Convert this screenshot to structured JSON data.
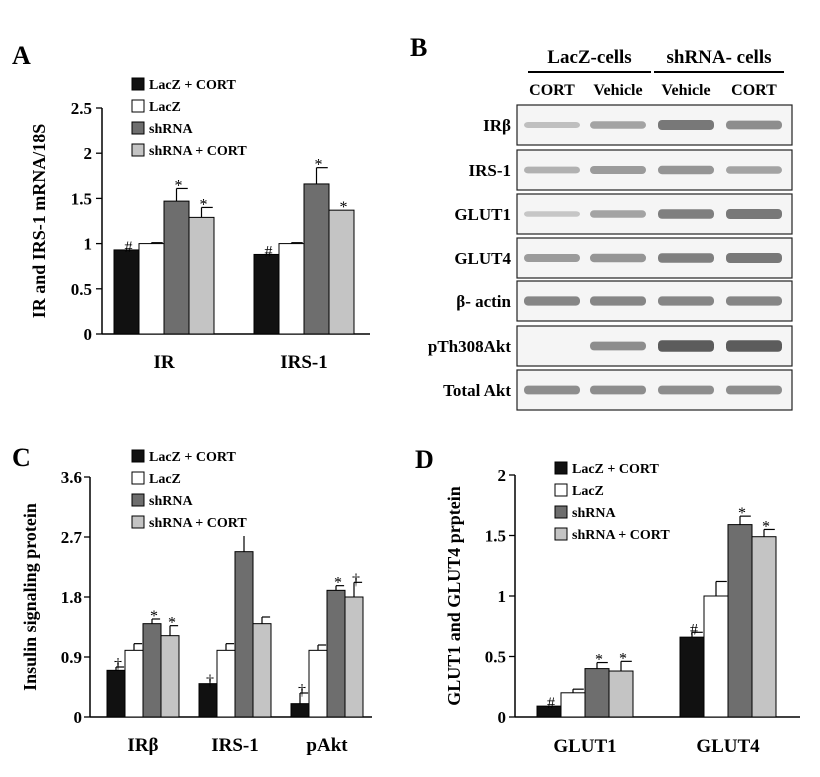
{
  "panel_labels": {
    "a": "A",
    "b": "B",
    "c": "C",
    "d": "D"
  },
  "chart_data": [
    {
      "id": "A",
      "type": "bar",
      "ylabel": "IR and IRS-1 mRNA/18S",
      "ylim": [
        0,
        2.5
      ],
      "yticks": [
        "0",
        "0.5",
        "1",
        "1.5",
        "2",
        "2.5"
      ],
      "categories": [
        "IR",
        "IRS-1"
      ],
      "series": [
        {
          "name": "LacZ + CORT",
          "color": "#111111",
          "values": [
            0.93,
            0.88
          ],
          "errors": [
            0.0,
            0.0
          ],
          "marks": [
            "#",
            "#"
          ]
        },
        {
          "name": "LacZ",
          "color": "#ffffff",
          "values": [
            1.0,
            1.0
          ],
          "errors": [
            0.01,
            0.01
          ],
          "marks": [
            "",
            ""
          ]
        },
        {
          "name": "shRNA",
          "color": "#6e6e6e",
          "values": [
            1.47,
            1.66
          ],
          "errors": [
            0.14,
            0.18
          ],
          "marks": [
            "*",
            "*"
          ]
        },
        {
          "name": "shRNA + CORT",
          "color": "#c4c4c4",
          "values": [
            1.29,
            1.37
          ],
          "errors": [
            0.11,
            0.0
          ],
          "marks": [
            "*",
            "*"
          ]
        }
      ]
    },
    {
      "id": "C",
      "type": "bar",
      "ylabel": "Insulin signaling protein",
      "ylim": [
        0,
        3.6
      ],
      "yticks": [
        "0",
        "0.9",
        "1.8",
        "2.7",
        "3.6"
      ],
      "categories": [
        "IRβ",
        "IRS-1",
        "pAkt"
      ],
      "series": [
        {
          "name": "LacZ + CORT",
          "color": "#111111",
          "values": [
            0.7,
            0.5,
            0.2
          ],
          "errors": [
            0.05,
            0.0,
            0.16
          ],
          "marks": [
            "†",
            "†",
            "†"
          ]
        },
        {
          "name": "LacZ",
          "color": "#ffffff",
          "values": [
            1.0,
            1.0,
            1.0
          ],
          "errors": [
            0.1,
            0.1,
            0.08
          ],
          "marks": [
            "",
            "",
            ""
          ]
        },
        {
          "name": "shRNA",
          "color": "#6e6e6e",
          "values": [
            1.4,
            2.48,
            1.9
          ],
          "errors": [
            0.07,
            0.35,
            0.07
          ],
          "marks": [
            "*",
            "*",
            "*"
          ]
        },
        {
          "name": "shRNA + CORT",
          "color": "#c4c4c4",
          "values": [
            1.22,
            1.4,
            1.8
          ],
          "errors": [
            0.15,
            0.1,
            0.22
          ],
          "marks": [
            "*",
            "",
            "†"
          ]
        }
      ]
    },
    {
      "id": "D",
      "type": "bar",
      "ylabel": "GLUT1 and GLUT4 prptein",
      "ylim": [
        0,
        2
      ],
      "yticks": [
        "0",
        "0.5",
        "1",
        "1.5",
        "2"
      ],
      "categories": [
        "GLUT1",
        "GLUT4"
      ],
      "series": [
        {
          "name": "LacZ + CORT",
          "color": "#111111",
          "values": [
            0.09,
            0.66
          ],
          "errors": [
            0.0,
            0.04
          ],
          "marks": [
            "#",
            "#"
          ]
        },
        {
          "name": "LacZ",
          "color": "#ffffff",
          "values": [
            0.2,
            1.0
          ],
          "errors": [
            0.03,
            0.12
          ],
          "marks": [
            "",
            ""
          ]
        },
        {
          "name": "shRNA",
          "color": "#6e6e6e",
          "values": [
            0.4,
            1.59
          ],
          "errors": [
            0.05,
            0.07
          ],
          "marks": [
            "*",
            "*"
          ]
        },
        {
          "name": "shRNA + CORT",
          "color": "#c4c4c4",
          "values": [
            0.38,
            1.49
          ],
          "errors": [
            0.08,
            0.06
          ],
          "marks": [
            "*",
            "*"
          ]
        }
      ]
    }
  ],
  "legend_labels": [
    "LacZ + CORT",
    "LacZ",
    "shRNA",
    "shRNA + CORT"
  ],
  "legend_labels_a": [
    "LacZ + CORT",
    "LacZ",
    "shRNA",
    "shRNA + CORT"
  ],
  "blot": {
    "groups": [
      {
        "label": "LacZ-cells"
      },
      {
        "label": "shRNA- cells"
      }
    ],
    "lanes": [
      "CORT",
      "Vehicle",
      "Vehicle",
      "CORT"
    ],
    "rows": [
      {
        "label": "IRβ",
        "intensity": [
          0.25,
          0.45,
          0.75,
          0.6
        ]
      },
      {
        "label": "IRS-1",
        "intensity": [
          0.35,
          0.5,
          0.55,
          0.45
        ]
      },
      {
        "label": "GLUT1",
        "intensity": [
          0.2,
          0.45,
          0.7,
          0.75
        ]
      },
      {
        "label": "GLUT4",
        "intensity": [
          0.5,
          0.55,
          0.7,
          0.75
        ]
      },
      {
        "label": "β- actin",
        "intensity": [
          0.65,
          0.65,
          0.65,
          0.65
        ]
      },
      {
        "label": "pTh308Akt",
        "intensity": [
          0.0,
          0.6,
          0.95,
          0.95
        ]
      },
      {
        "label": "Total Akt",
        "intensity": [
          0.6,
          0.6,
          0.6,
          0.6
        ]
      }
    ]
  }
}
